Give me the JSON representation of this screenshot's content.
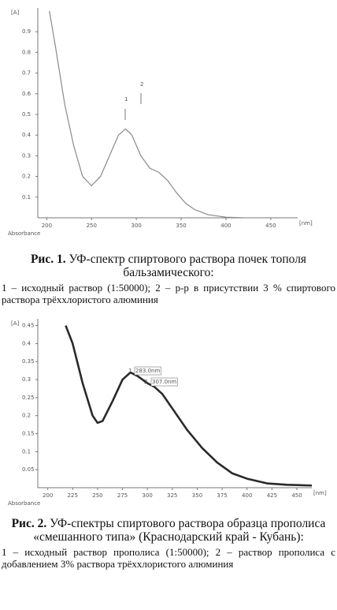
{
  "chart_data": [
    {
      "type": "line",
      "y_label": "[A]",
      "x_label": "[nm]",
      "corner_label": "Absorbance",
      "x": [
        203,
        210,
        220,
        230,
        240,
        250,
        260,
        270,
        280,
        288,
        295,
        305,
        315,
        325,
        335,
        345,
        355,
        365,
        380,
        400,
        420
      ],
      "series": [
        {
          "color": "#8a8a8a",
          "values": [
            1.0,
            0.82,
            0.55,
            0.35,
            0.2,
            0.155,
            0.2,
            0.3,
            0.4,
            0.43,
            0.4,
            0.3,
            0.24,
            0.22,
            0.18,
            0.12,
            0.07,
            0.04,
            0.015,
            0.003,
            0
          ]
        }
      ],
      "xlim": [
        190,
        480
      ],
      "ylim": [
        0,
        1.0
      ],
      "xticks": [
        200,
        250,
        300,
        350,
        400,
        450
      ],
      "yticks": [
        0.1,
        0.2,
        0.3,
        0.4,
        0.5,
        0.6,
        0.7,
        0.8,
        0.9
      ],
      "annotations": [
        "1",
        "2"
      ]
    },
    {
      "type": "line",
      "y_label": "[A]",
      "x_label": "[nm]",
      "corner_label": "Absorbance",
      "x": [
        218,
        225,
        235,
        245,
        250,
        255,
        265,
        275,
        283,
        290,
        300,
        307,
        315,
        325,
        340,
        355,
        370,
        385,
        400,
        420,
        440,
        465
      ],
      "series": [
        {
          "color": "#2a2a2a",
          "values": [
            0.45,
            0.4,
            0.29,
            0.2,
            0.18,
            0.185,
            0.24,
            0.3,
            0.32,
            0.31,
            0.29,
            0.28,
            0.26,
            0.22,
            0.16,
            0.11,
            0.07,
            0.04,
            0.025,
            0.012,
            0.008,
            0.006
          ]
        }
      ],
      "xlim": [
        190,
        465
      ],
      "ylim": [
        0,
        0.46
      ],
      "xticks": [
        200,
        225,
        250,
        275,
        300,
        325,
        350,
        375,
        400,
        425,
        450
      ],
      "yticks": [
        0.05,
        0.1,
        0.15,
        0.2,
        0.25,
        0.3,
        0.35,
        0.4,
        0.45
      ],
      "annotations": [
        "1",
        "283.0nm",
        "2",
        "307.0nm"
      ]
    }
  ],
  "captions": [
    {
      "label": "Рис. 1.",
      "title": "УФ-спектр спиртового раствора почек тополя бальзамического:",
      "legend": "1 – исходный раствор (1:50000); 2 – р-р в присутствии 3 % спиртового раствора трёххлористого алюминия"
    },
    {
      "label": "Рис. 2.",
      "title": "УФ-спектры спиртового раствора образца прополиса «смешанного типа» (Краснодарский край - Кубань):",
      "legend": "1 – исходный раствор прополиса (1:50000); 2 – раствор прополиса с добавлением 3% раствора трёххлористого алюминия"
    }
  ]
}
